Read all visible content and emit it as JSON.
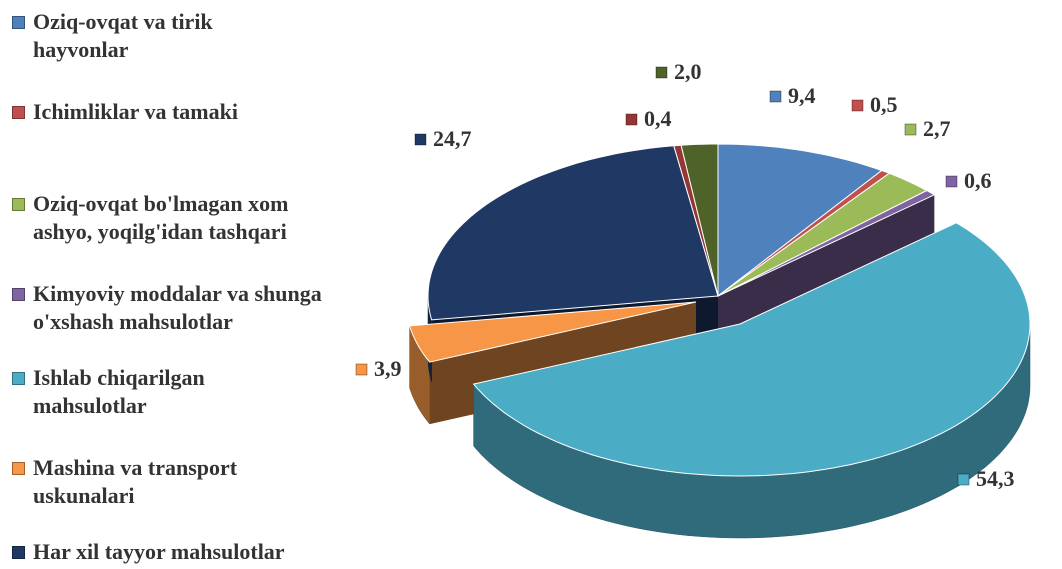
{
  "chart_data": {
    "type": "pie3d",
    "categories": [
      "Oziq-ovqat va tirik hayvonlar",
      "Ichimliklar va tamaki",
      "Oziq-ovqat bo'lmagan xom ashyo, yoqilg'idan tashqari",
      "Kimyoviy moddalar va shunga o'xshash mahsulotlar",
      "Ishlab chiqarilgan mahsulotlar",
      "Mashina va transport uskunalari",
      "Har xil tayyor mahsulotlar",
      null,
      null
    ],
    "values": [
      9.4,
      0.5,
      2.7,
      0.6,
      54.3,
      3.9,
      24.7,
      0.4,
      2.0
    ],
    "value_labels": [
      "9,4",
      "0,5",
      "2,7",
      "0,6",
      "54,3",
      "3,9",
      "24,7",
      "0,4",
      "2,0"
    ],
    "colors": [
      "#4f81bd",
      "#c0504d",
      "#9bbb59",
      "#8064a2",
      "#4bacc6",
      "#f79646",
      "#1f3864",
      "#943634",
      "#4f6228"
    ],
    "legend": "left"
  }
}
